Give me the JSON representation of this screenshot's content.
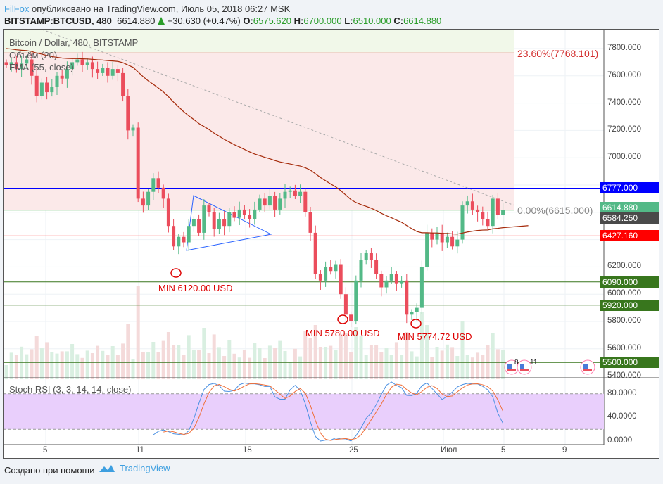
{
  "header": {
    "user": "FilFox",
    "published": "опубликовано на TradingView.com, Июль 05, 2018 06:27 MSK",
    "symbol": "BITSTAMP:BTCUSD, 480",
    "last": "6614.880",
    "change": "+30.630 (+0.47%)",
    "o_label": "O:",
    "o": "6575.620",
    "h_label": "H:",
    "h": "6700.000",
    "l_label": "L:",
    "l": "6510.000",
    "c_label": "C:",
    "c": "6614.880"
  },
  "legends": {
    "main": "Bitcoin / Dollar, 480, BITSTAMP",
    "volume": "Объём (20)",
    "ema": "EMA (55, close)",
    "stoch": "Stoch RSI (3, 3, 14, 14, close)"
  },
  "annotations": {
    "fib236": "23.60%(7768.101)",
    "fib0": "0.00%(6615.000)",
    "min1": "MIN 6120.00 USD",
    "min2": "MIN 5780.00 USD",
    "min3": "MIN 5774.72 USD",
    "event1": "8",
    "event2": "11"
  },
  "price_tags": [
    {
      "v": "6777.000",
      "color": "#0000ff"
    },
    {
      "v": "6614.880",
      "color": "#53b987"
    },
    {
      "v": "6584.250",
      "color": "#4a4a4a"
    },
    {
      "v": "6427.160",
      "color": "#ff0000"
    },
    {
      "v": "6090.000",
      "color": "#38761d"
    },
    {
      "v": "5920.000",
      "color": "#38761d"
    },
    {
      "v": "5500.000",
      "color": "#38761d"
    }
  ],
  "footer": {
    "text": "Создано при помощи",
    "brand": "TradingView"
  },
  "colors": {
    "up": "#53b987",
    "down": "#eb4d5c",
    "ema": "#a52a0a",
    "stoch_k": "#4a90e2",
    "stoch_d": "#f0703a"
  },
  "chart_data": {
    "type": "candlestick",
    "interval": "480",
    "ylim": [
      5400,
      7900
    ],
    "y_ticks": [
      "7800.000",
      "7600.000",
      "7400.000",
      "7200.000",
      "7000.000",
      "6200.000",
      "6000.000",
      "5800.000",
      "5600.000",
      "5400.000"
    ],
    "x_ticks": [
      "5",
      "11",
      "18",
      "25",
      "Июл",
      "5",
      "9"
    ],
    "stoch_ticks": [
      "80.0000",
      "40.0000",
      "0.0000"
    ],
    "stoch_bands": [
      20,
      80
    ],
    "closes": [
      7680,
      7700,
      7650,
      7690,
      7720,
      7600,
      7450,
      7550,
      7480,
      7520,
      7600,
      7580,
      7650,
      7700,
      7720,
      7680,
      7700,
      7650,
      7620,
      7660,
      7600,
      7650,
      7620,
      7450,
      7200,
      7220,
      6700,
      6650,
      6750,
      6850,
      6780,
      6700,
      6500,
      6350,
      6420,
      6380,
      6500,
      6550,
      6450,
      6650,
      6600,
      6480,
      6550,
      6500,
      6600,
      6560,
      6620,
      6580,
      6550,
      6620,
      6700,
      6650,
      6720,
      6620,
      6700,
      6750,
      6760,
      6720,
      6750,
      6600,
      6450,
      6150,
      6100,
      6200,
      6170,
      6220,
      6000,
      5850,
      5800,
      6100,
      6250,
      6300,
      6250,
      6150,
      6050,
      6100,
      6150,
      6080,
      6100,
      5850,
      5870,
      5900,
      6200,
      6450,
      6400,
      6450,
      6380,
      6420,
      6350,
      6400,
      6650,
      6680,
      6620,
      6600,
      6550,
      6500,
      6700,
      6580,
      6615
    ],
    "levels": {
      "fib_23_6": 7768.101,
      "fib_0": 6615,
      "resistance": 6777,
      "support_red": 6427.16,
      "green": [
        6090,
        5920,
        5500
      ]
    }
  }
}
